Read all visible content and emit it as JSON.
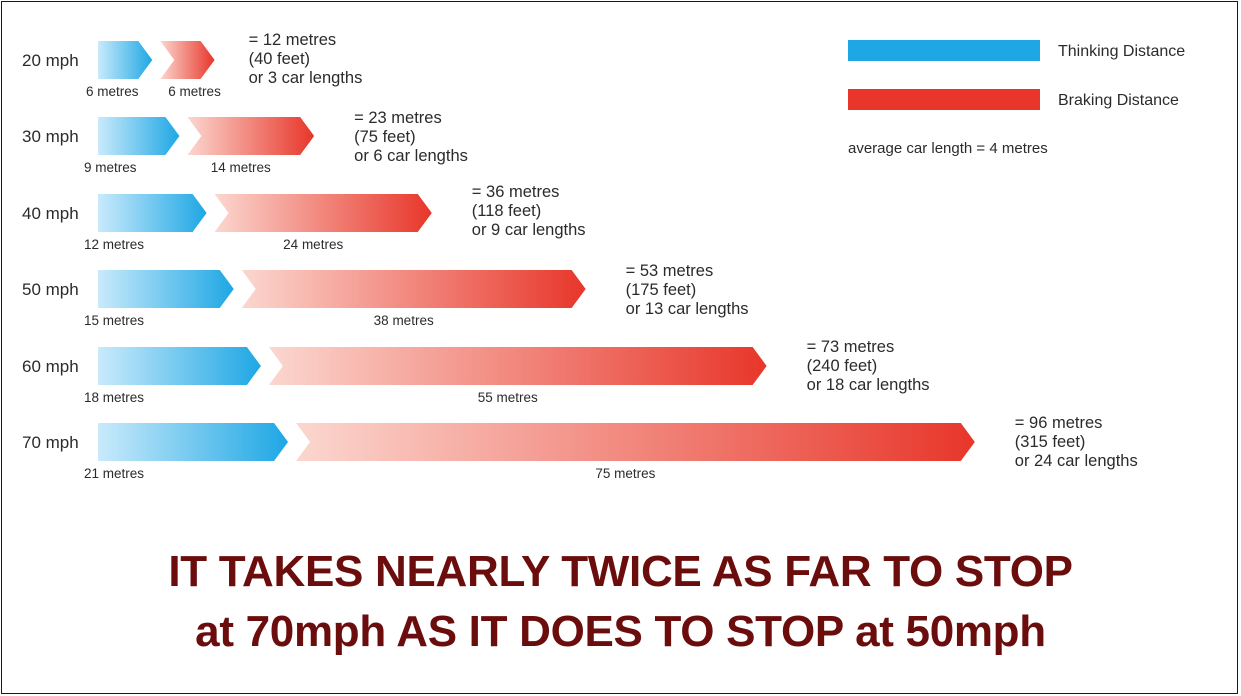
{
  "chart_data": {
    "type": "bar",
    "orientation": "horizontal",
    "stacked": true,
    "categories": [
      "20 mph",
      "30 mph",
      "40 mph",
      "50 mph",
      "60 mph",
      "70 mph"
    ],
    "series": [
      {
        "name": "Thinking Distance",
        "color": "#1ea7e4",
        "values": [
          6,
          9,
          12,
          15,
          18,
          21
        ],
        "labels": [
          "6 metres",
          "9 metres",
          "12 metres",
          "15 metres",
          "18 metres",
          "21 metres"
        ]
      },
      {
        "name": "Braking Distance",
        "color": "#e8362a",
        "values": [
          6,
          14,
          24,
          38,
          55,
          75
        ],
        "labels": [
          "6 metres",
          "14 metres",
          "24 metres",
          "38 metres",
          "55 metres",
          "75 metres"
        ]
      }
    ],
    "totals": [
      [
        "= 12 metres",
        "(40 feet)",
        "or 3 car lengths"
      ],
      [
        "= 23 metres",
        "(75 feet)",
        "or 6 car lengths"
      ],
      [
        "= 36 metres",
        "(118 feet)",
        "or 9 car lengths"
      ],
      [
        "= 53 metres",
        "(175 feet)",
        "or 13 car lengths"
      ],
      [
        "= 73 metres",
        "(240 feet)",
        "or 18 car lengths"
      ],
      [
        "= 96 metres",
        "(315 feet)",
        "or 24 car lengths"
      ]
    ],
    "legend_position": "top-right",
    "note": "average car length = 4 metres",
    "grid": false
  },
  "headline": {
    "line1": "IT TAKES NEARLY TWICE AS FAR TO STOP",
    "line2": "at 70mph AS IT DOES TO STOP at 50mph"
  },
  "colors": {
    "thinking_light": "#c9eafb",
    "thinking_dark": "#1ea7e4",
    "braking_light": "#fbd7cf",
    "braking_dark": "#e8362a",
    "headline": "#6b0d0d"
  }
}
